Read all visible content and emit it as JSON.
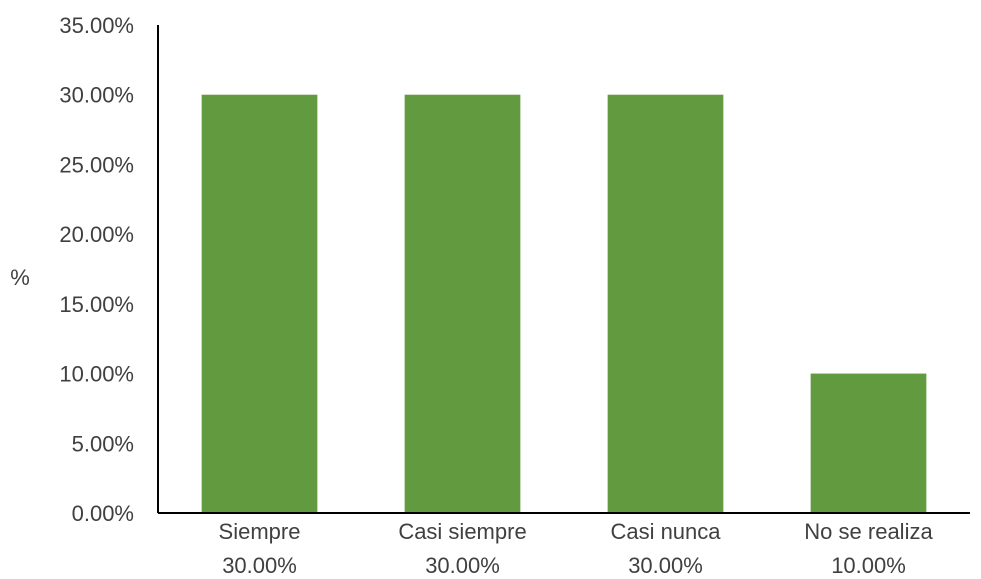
{
  "chart_data": {
    "type": "bar",
    "title": "",
    "xlabel": "",
    "ylabel": "%",
    "categories": [
      "Siempre",
      "Casi siempre",
      "Casi nunca",
      "No se realiza"
    ],
    "value_labels": [
      "30.00%",
      "30.00%",
      "30.00%",
      "10.00%"
    ],
    "values": [
      30.0,
      30.0,
      30.0,
      10.0
    ],
    "ylim": [
      0,
      35
    ],
    "yticks": [
      0,
      5,
      10,
      15,
      20,
      25,
      30,
      35
    ],
    "ytick_labels": [
      "0.00%",
      "5.00%",
      "10.00%",
      "15.00%",
      "20.00%",
      "25.00%",
      "30.00%",
      "35.00%"
    ],
    "grid": false,
    "legend": "none",
    "bar_color": "#629A3F"
  }
}
